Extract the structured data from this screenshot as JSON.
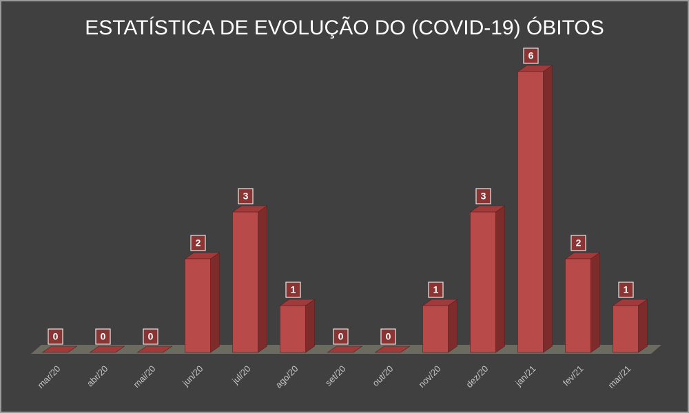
{
  "chart_data": {
    "type": "bar3d",
    "title": "ESTATÍSTICA DE EVOLUÇÃO DO (COVID-19) ÓBITOS",
    "categories": [
      "mar/20",
      "abr/20",
      "mai/20",
      "jun/20",
      "jul/20",
      "ago/20",
      "set/20",
      "out/20",
      "nov/20",
      "dez/20",
      "jan/21",
      "fev/21",
      "mar/21"
    ],
    "values": [
      0,
      0,
      0,
      2,
      3,
      1,
      0,
      0,
      1,
      3,
      6,
      2,
      1
    ],
    "color": "#b84a4a"
  }
}
